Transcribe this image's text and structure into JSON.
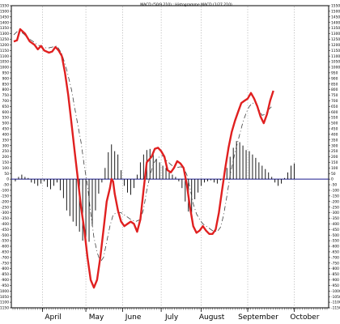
{
  "chart_data": {
    "type": "line",
    "title": "MACD (50/9,210) ; Histogramme MACD (1/27,210)",
    "xlabel": "",
    "ylabel": "",
    "ylim": [
      -1150,
      1550
    ],
    "grid": "vertical dotted lines at month boundaries",
    "legend": "none",
    "x_range": [
      0,
      195
    ],
    "months": [
      {
        "label": "April",
        "x": 18
      },
      {
        "label": "May",
        "x": 45
      },
      {
        "label": "June",
        "x": 68
      },
      {
        "label": "July",
        "x": 92
      },
      {
        "label": "August",
        "x": 117
      },
      {
        "label": "September",
        "x": 146
      },
      {
        "label": "October",
        "x": 175
      }
    ],
    "y_ticks": [
      1550,
      1500,
      1450,
      1400,
      1350,
      1300,
      1250,
      1200,
      1150,
      1100,
      1050,
      1000,
      950,
      900,
      850,
      800,
      750,
      700,
      650,
      600,
      550,
      500,
      450,
      400,
      350,
      300,
      250,
      200,
      150,
      100,
      50,
      0,
      -50,
      -100,
      -150,
      -200,
      -250,
      -300,
      -350,
      -400,
      -450,
      -500,
      -550,
      -600,
      -650,
      -700,
      -750,
      -800,
      -850,
      -900,
      -950,
      -1000,
      -1050,
      -1100,
      -1150
    ],
    "y_tick_labels": [
      "1550",
      "1500",
      "1450",
      "1400",
      "1350",
      "1300",
      "1250",
      "1200",
      "1150",
      "1100",
      "1050",
      "1000",
      "950",
      "900",
      "850",
      "800",
      "750",
      "700",
      "650",
      "600",
      "550",
      "500",
      "450",
      "400",
      "350",
      "300",
      "250",
      "200",
      "150",
      "100",
      "50",
      "0",
      "-50",
      "-100",
      "-150",
      "-200",
      "-250",
      "-300",
      "-350",
      "-400",
      "-450",
      "-500",
      "-550",
      "-600",
      "-650",
      "-700",
      "-750",
      "-800",
      "-850",
      "-900",
      "-950",
      "-1000",
      "-1050",
      "-1100",
      "-1150"
    ],
    "series": [
      {
        "role": "macd",
        "color": "#e02020",
        "points": [
          [
            0,
            1230
          ],
          [
            2,
            1240
          ],
          [
            4,
            1340
          ],
          [
            7,
            1300
          ],
          [
            10,
            1230
          ],
          [
            13,
            1200
          ],
          [
            15,
            1160
          ],
          [
            17,
            1190
          ],
          [
            19,
            1150
          ],
          [
            22,
            1130
          ],
          [
            24,
            1140
          ],
          [
            26,
            1180
          ],
          [
            28,
            1150
          ],
          [
            30,
            1100
          ],
          [
            32,
            950
          ],
          [
            34,
            750
          ],
          [
            36,
            500
          ],
          [
            38,
            250
          ],
          [
            40,
            0
          ],
          [
            42,
            -250
          ],
          [
            44,
            -450
          ],
          [
            46,
            -700
          ],
          [
            48,
            -900
          ],
          [
            50,
            -970
          ],
          [
            52,
            -900
          ],
          [
            54,
            -700
          ],
          [
            56,
            -450
          ],
          [
            58,
            -200
          ],
          [
            60,
            -80
          ],
          [
            61,
            0
          ],
          [
            62,
            -20
          ],
          [
            63,
            -130
          ],
          [
            65,
            -280
          ],
          [
            67,
            -380
          ],
          [
            69,
            -420
          ],
          [
            71,
            -400
          ],
          [
            73,
            -380
          ],
          [
            75,
            -400
          ],
          [
            77,
            -470
          ],
          [
            79,
            -360
          ],
          [
            81,
            -100
          ],
          [
            83,
            150
          ],
          [
            86,
            200
          ],
          [
            88,
            270
          ],
          [
            90,
            280
          ],
          [
            92,
            250
          ],
          [
            94,
            200
          ],
          [
            96,
            80
          ],
          [
            98,
            60
          ],
          [
            100,
            100
          ],
          [
            102,
            160
          ],
          [
            104,
            140
          ],
          [
            106,
            100
          ],
          [
            108,
            -50
          ],
          [
            110,
            -250
          ],
          [
            112,
            -420
          ],
          [
            114,
            -480
          ],
          [
            116,
            -460
          ],
          [
            118,
            -420
          ],
          [
            120,
            -460
          ],
          [
            122,
            -490
          ],
          [
            124,
            -490
          ],
          [
            126,
            -450
          ],
          [
            128,
            -300
          ],
          [
            130,
            -100
          ],
          [
            132,
            100
          ],
          [
            134,
            280
          ],
          [
            136,
            420
          ],
          [
            138,
            520
          ],
          [
            140,
            600
          ],
          [
            142,
            680
          ],
          [
            144,
            700
          ],
          [
            146,
            720
          ],
          [
            148,
            770
          ],
          [
            150,
            720
          ],
          [
            152,
            650
          ],
          [
            154,
            560
          ],
          [
            156,
            500
          ],
          [
            158,
            580
          ],
          [
            160,
            700
          ],
          [
            162,
            790
          ]
        ]
      },
      {
        "role": "signal",
        "color": "#404040",
        "points": [
          [
            0,
            1290
          ],
          [
            3,
            1330
          ],
          [
            6,
            1300
          ],
          [
            9,
            1260
          ],
          [
            12,
            1230
          ],
          [
            15,
            1200
          ],
          [
            18,
            1180
          ],
          [
            21,
            1170
          ],
          [
            24,
            1180
          ],
          [
            27,
            1190
          ],
          [
            30,
            1120
          ],
          [
            33,
            980
          ],
          [
            36,
            800
          ],
          [
            39,
            560
          ],
          [
            42,
            330
          ],
          [
            44,
            120
          ],
          [
            46,
            -60
          ],
          [
            48,
            -300
          ],
          [
            50,
            -520
          ],
          [
            52,
            -650
          ],
          [
            54,
            -740
          ],
          [
            56,
            -700
          ],
          [
            58,
            -560
          ],
          [
            60,
            -420
          ],
          [
            62,
            -320
          ],
          [
            64,
            -300
          ],
          [
            67,
            -300
          ],
          [
            70,
            -330
          ],
          [
            73,
            -360
          ],
          [
            76,
            -380
          ],
          [
            79,
            -360
          ],
          [
            81,
            -270
          ],
          [
            83,
            -100
          ],
          [
            85,
            30
          ],
          [
            87,
            130
          ],
          [
            89,
            180
          ],
          [
            91,
            200
          ],
          [
            93,
            210
          ],
          [
            95,
            170
          ],
          [
            98,
            130
          ],
          [
            101,
            100
          ],
          [
            104,
            110
          ],
          [
            106,
            100
          ],
          [
            108,
            40
          ],
          [
            110,
            -80
          ],
          [
            112,
            -220
          ],
          [
            114,
            -310
          ],
          [
            116,
            -360
          ],
          [
            118,
            -400
          ],
          [
            121,
            -430
          ],
          [
            124,
            -460
          ],
          [
            127,
            -470
          ],
          [
            129,
            -430
          ],
          [
            131,
            -320
          ],
          [
            133,
            -150
          ],
          [
            135,
            30
          ],
          [
            137,
            170
          ],
          [
            139,
            290
          ],
          [
            141,
            400
          ],
          [
            143,
            510
          ],
          [
            145,
            590
          ],
          [
            147,
            650
          ],
          [
            149,
            680
          ],
          [
            151,
            670
          ],
          [
            153,
            620
          ],
          [
            155,
            570
          ],
          [
            157,
            580
          ],
          [
            159,
            620
          ],
          [
            161,
            650
          ]
        ]
      },
      {
        "role": "histogram",
        "color": "#000000",
        "points": [
          [
            1,
            -20
          ],
          [
            3,
            20
          ],
          [
            5,
            40
          ],
          [
            7,
            20
          ],
          [
            9,
            10
          ],
          [
            11,
            -30
          ],
          [
            13,
            -40
          ],
          [
            15,
            -60
          ],
          [
            17,
            -40
          ],
          [
            19,
            -20
          ],
          [
            21,
            -70
          ],
          [
            23,
            -90
          ],
          [
            25,
            -60
          ],
          [
            27,
            -30
          ],
          [
            29,
            -100
          ],
          [
            31,
            -170
          ],
          [
            33,
            -280
          ],
          [
            35,
            -330
          ],
          [
            37,
            -380
          ],
          [
            39,
            -420
          ],
          [
            41,
            -470
          ],
          [
            43,
            -550
          ],
          [
            45,
            -600
          ],
          [
            47,
            -560
          ],
          [
            49,
            -420
          ],
          [
            51,
            -280
          ],
          [
            53,
            -130
          ],
          [
            55,
            -30
          ],
          [
            57,
            100
          ],
          [
            59,
            240
          ],
          [
            61,
            310
          ],
          [
            63,
            250
          ],
          [
            65,
            220
          ],
          [
            67,
            80
          ],
          [
            69,
            -60
          ],
          [
            71,
            -120
          ],
          [
            73,
            -140
          ],
          [
            75,
            -80
          ],
          [
            77,
            40
          ],
          [
            79,
            150
          ],
          [
            81,
            220
          ],
          [
            83,
            260
          ],
          [
            85,
            270
          ],
          [
            87,
            230
          ],
          [
            89,
            180
          ],
          [
            91,
            150
          ],
          [
            93,
            120
          ],
          [
            95,
            100
          ],
          [
            97,
            60
          ],
          [
            99,
            40
          ],
          [
            101,
            20
          ],
          [
            103,
            -20
          ],
          [
            105,
            -80
          ],
          [
            107,
            -200
          ],
          [
            109,
            -290
          ],
          [
            111,
            -300
          ],
          [
            113,
            -180
          ],
          [
            115,
            -120
          ],
          [
            117,
            -60
          ],
          [
            119,
            -30
          ],
          [
            121,
            -20
          ],
          [
            123,
            -10
          ],
          [
            125,
            -30
          ],
          [
            127,
            -40
          ],
          [
            129,
            -10
          ],
          [
            131,
            30
          ],
          [
            133,
            100
          ],
          [
            135,
            200
          ],
          [
            137,
            280
          ],
          [
            139,
            340
          ],
          [
            141,
            330
          ],
          [
            143,
            300
          ],
          [
            145,
            260
          ],
          [
            147,
            250
          ],
          [
            149,
            220
          ],
          [
            151,
            190
          ],
          [
            153,
            150
          ],
          [
            155,
            120
          ],
          [
            157,
            90
          ],
          [
            159,
            60
          ],
          [
            161,
            20
          ],
          [
            163,
            -30
          ],
          [
            165,
            -60
          ],
          [
            167,
            -40
          ],
          [
            169,
            10
          ],
          [
            171,
            60
          ],
          [
            173,
            120
          ],
          [
            175,
            140
          ]
        ]
      }
    ]
  }
}
